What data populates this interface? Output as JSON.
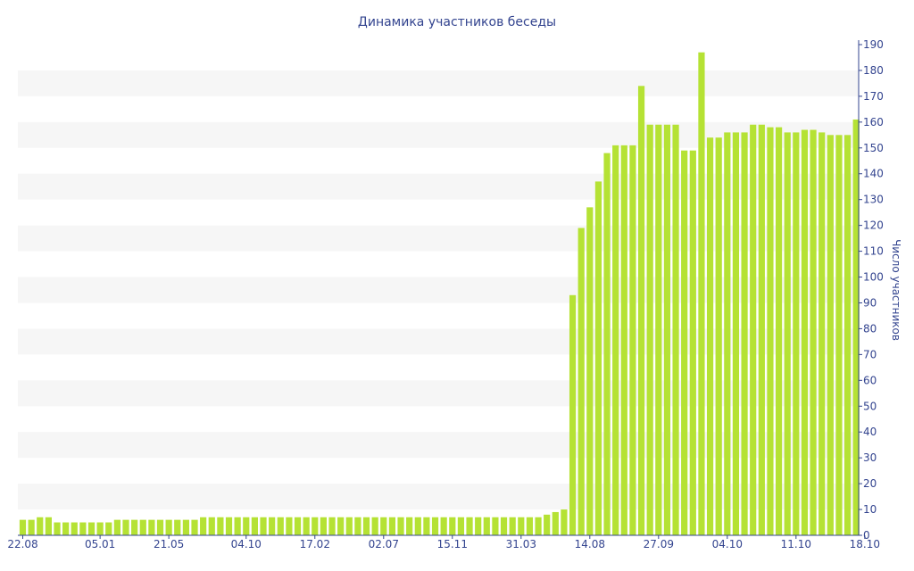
{
  "chart_data": {
    "type": "bar",
    "title": "Динамика участников беседы",
    "ylabel": "Число участников",
    "xlabel": "",
    "ylim": [
      0,
      190
    ],
    "y_axis_side": "right",
    "y_ticks": [
      0,
      10,
      20,
      30,
      40,
      50,
      60,
      70,
      80,
      90,
      100,
      110,
      120,
      130,
      140,
      150,
      160,
      170,
      180,
      190
    ],
    "x_tick_labels": [
      {
        "index": 0,
        "label": "22.08"
      },
      {
        "index": 9,
        "label": "05.01"
      },
      {
        "index": 17,
        "label": "21.05"
      },
      {
        "index": 26,
        "label": "04.10"
      },
      {
        "index": 34,
        "label": "17.02"
      },
      {
        "index": 42,
        "label": "02.07"
      },
      {
        "index": 50,
        "label": "15.11"
      },
      {
        "index": 58,
        "label": "31.03"
      },
      {
        "index": 66,
        "label": "14.08"
      },
      {
        "index": 74,
        "label": "27.09"
      },
      {
        "index": 82,
        "label": "04.10"
      },
      {
        "index": 90,
        "label": "11.10"
      },
      {
        "index": 98,
        "label": "18.10"
      }
    ],
    "grid": "alternating horizontal bands",
    "bar_color": "#b5e234",
    "band_color": "#f6f6f6",
    "axis_color": "#33448f",
    "values": [
      6,
      6,
      7,
      7,
      5,
      5,
      5,
      5,
      5,
      5,
      5,
      6,
      6,
      6,
      6,
      6,
      6,
      6,
      6,
      6,
      6,
      7,
      7,
      7,
      7,
      7,
      7,
      7,
      7,
      7,
      7,
      7,
      7,
      7,
      7,
      7,
      7,
      7,
      7,
      7,
      7,
      7,
      7,
      7,
      7,
      7,
      7,
      7,
      7,
      7,
      7,
      7,
      7,
      7,
      7,
      7,
      7,
      7,
      7,
      7,
      7,
      8,
      9,
      10,
      93,
      119,
      127,
      137,
      148,
      151,
      151,
      151,
      174,
      159,
      159,
      159,
      159,
      149,
      149,
      187,
      154,
      154,
      156,
      156,
      156,
      159,
      159,
      158,
      158,
      156,
      156,
      157,
      157,
      156,
      155,
      155,
      155,
      161
    ]
  }
}
